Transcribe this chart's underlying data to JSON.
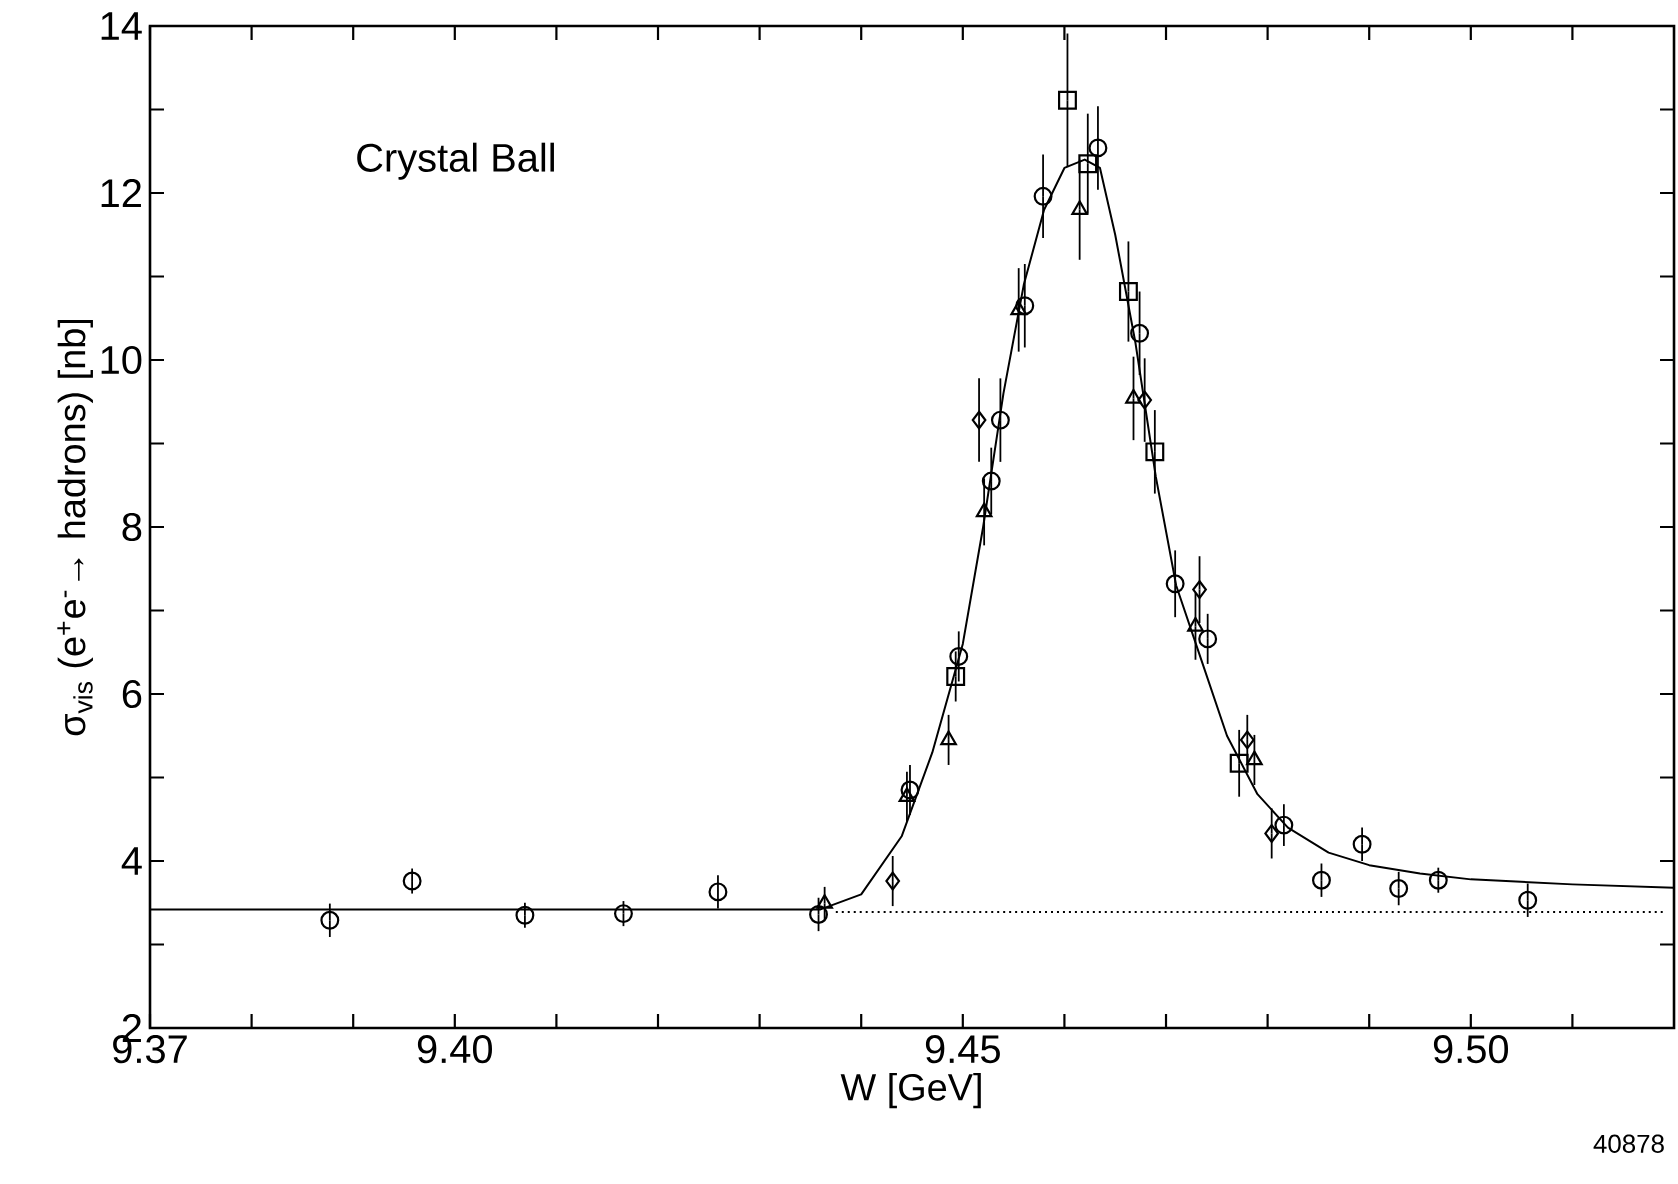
{
  "chart_data": {
    "type": "scatter",
    "xlabel": "W [GeV]",
    "ylabel": "σ$_{vis}$ (e$^{+}$e$^{-}$→ hadrons) [nb]",
    "annotations": [
      "Crystal Ball",
      "40878"
    ],
    "xlim": [
      9.37,
      9.52
    ],
    "ylim": [
      2,
      14
    ],
    "xticks": [
      9.37,
      {
        "value": 9.38,
        "label": null
      },
      {
        "value": 9.39,
        "label": null
      },
      {
        "value": 9.4,
        "label": "9.40"
      },
      {
        "value": 9.41,
        "label": null
      },
      {
        "value": 9.42,
        "label": null
      },
      {
        "value": 9.43,
        "label": null
      },
      {
        "value": 9.44,
        "label": null
      },
      9.45,
      {
        "value": 9.46,
        "label": null
      },
      {
        "value": 9.47,
        "label": null
      },
      {
        "value": 9.48,
        "label": null
      },
      {
        "value": 9.49,
        "label": null
      },
      {
        "value": 9.5,
        "label": "9.50"
      },
      {
        "value": 9.51,
        "label": null
      }
    ],
    "yticks": [
      2,
      {
        "value": 3,
        "label": null
      },
      4,
      {
        "value": 5,
        "label": null
      },
      6,
      {
        "value": 7,
        "label": null
      },
      8,
      {
        "value": 9,
        "label": null
      },
      10,
      {
        "value": 11,
        "label": null
      },
      12,
      {
        "value": 13,
        "label": null
      },
      14
    ],
    "grid": false,
    "series": [
      {
        "marker": "circle",
        "color": "#000000",
        "x": [
          9.3877,
          9.3958,
          9.4069,
          9.4166,
          9.4259,
          9.4358,
          9.4448,
          9.4496,
          9.4528,
          9.4537,
          9.4561,
          9.4579,
          9.4633,
          9.4674,
          9.4709,
          9.4741,
          9.4816,
          9.4853,
          9.4893,
          9.4929,
          9.4968,
          9.5056
        ],
        "values": [
          3.29,
          3.76,
          3.35,
          3.37,
          3.63,
          3.36,
          4.85,
          6.45,
          8.55,
          9.28,
          10.65,
          11.96,
          12.54,
          10.32,
          7.32,
          6.66,
          4.43,
          3.77,
          4.2,
          3.67,
          3.77,
          3.53
        ],
        "errors": [
          0.2,
          0.15,
          0.15,
          0.15,
          0.2,
          0.2,
          0.3,
          0.3,
          0.4,
          0.5,
          0.5,
          0.5,
          0.5,
          0.5,
          0.4,
          0.3,
          0.25,
          0.2,
          0.2,
          0.2,
          0.15,
          0.2
        ]
      },
      {
        "marker": "square",
        "color": "#000000",
        "x": [
          9.4493,
          9.4603,
          9.4623,
          9.4663,
          9.4689,
          9.4772
        ],
        "values": [
          6.21,
          13.11,
          12.35,
          10.82,
          8.9,
          5.17
        ],
        "errors": [
          0.3,
          0.8,
          0.6,
          0.6,
          0.5,
          0.4
        ]
      },
      {
        "marker": "triangle",
        "color": "#000000",
        "x": [
          9.4364,
          9.4445,
          9.4486,
          9.4521,
          9.4555,
          9.4615,
          9.4668,
          9.4729,
          9.4787
        ],
        "values": [
          3.49,
          4.77,
          5.45,
          8.18,
          10.6,
          11.8,
          9.54,
          6.81,
          5.21
        ],
        "errors": [
          0.2,
          0.3,
          0.3,
          0.4,
          0.5,
          0.6,
          0.5,
          0.4,
          0.3
        ]
      },
      {
        "marker": "diamond",
        "color": "#000000",
        "x": [
          9.4431,
          9.4516,
          9.4679,
          9.4733,
          9.478,
          9.4804
        ],
        "values": [
          3.76,
          9.28,
          9.52,
          7.25,
          5.45,
          4.33
        ],
        "errors": [
          0.3,
          0.5,
          0.5,
          0.4,
          0.3,
          0.3
        ]
      },
      {
        "type": "line",
        "line_style": "solid",
        "marker": "none",
        "color": "#000000",
        "x": [
          9.37,
          9.4,
          9.436,
          9.44,
          9.444,
          9.447,
          9.45,
          9.452,
          9.454,
          9.456,
          9.458,
          9.46,
          9.462,
          9.4635,
          9.465,
          9.467,
          9.469,
          9.471,
          9.4735,
          9.476,
          9.479,
          9.482,
          9.486,
          9.49,
          9.495,
          9.5,
          9.51,
          9.52
        ],
        "values": [
          3.42,
          3.42,
          3.42,
          3.6,
          4.3,
          5.3,
          6.6,
          8.0,
          9.6,
          10.9,
          11.8,
          12.3,
          12.4,
          12.3,
          11.5,
          10.2,
          8.6,
          7.3,
          6.4,
          5.5,
          4.8,
          4.4,
          4.1,
          3.95,
          3.85,
          3.78,
          3.72,
          3.68
        ]
      },
      {
        "type": "line",
        "line_style": "dotted",
        "marker": "none",
        "color": "#000000",
        "x": [
          9.4375,
          9.519
        ],
        "values": [
          3.39,
          3.39
        ]
      }
    ]
  }
}
